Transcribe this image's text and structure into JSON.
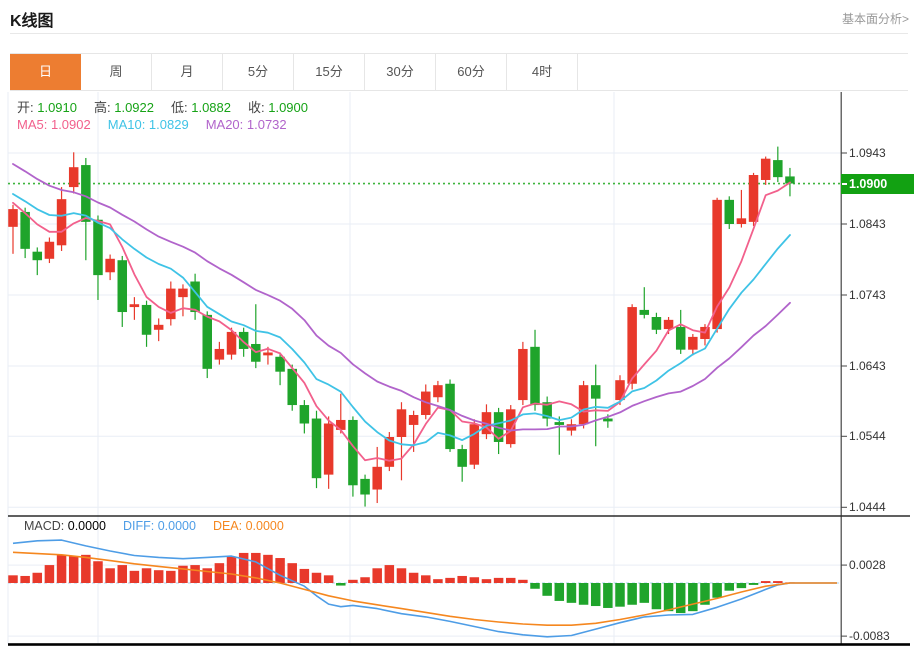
{
  "header": {
    "title": "K线图",
    "link_label": "基本面分析>"
  },
  "tabs": {
    "active_index": 0,
    "items": [
      "日",
      "周",
      "月",
      "5分",
      "15分",
      "30分",
      "60分",
      "4时"
    ]
  },
  "overlay": {
    "ohlc": [
      {
        "name": "open",
        "label": "开:",
        "value": "1.0910"
      },
      {
        "name": "high",
        "label": "高:",
        "value": "1.0922"
      },
      {
        "name": "low",
        "label": "低:",
        "value": "1.0882"
      },
      {
        "name": "close",
        "label": "收:",
        "value": "1.0900"
      }
    ],
    "ma": [
      {
        "name": "ma5",
        "label": "MA5:",
        "value": "1.0902"
      },
      {
        "name": "ma10",
        "label": "MA10:",
        "value": "1.0829"
      },
      {
        "name": "ma20",
        "label": "MA20:",
        "value": "1.0732"
      }
    ]
  },
  "price_axis": {
    "ticks": [
      "1.0943",
      "1.0843",
      "1.0743",
      "1.0643",
      "1.0544",
      "1.0444"
    ],
    "current_label": "1.0900"
  },
  "macd_header": [
    {
      "name": "macd",
      "label": "MACD:",
      "value": "0.0000"
    },
    {
      "name": "diff",
      "label": "DIFF:",
      "value": "0.0000"
    },
    {
      "name": "dea",
      "label": "DEA:",
      "value": "0.0000"
    }
  ],
  "macd_axis": {
    "ticks": [
      "0.0028",
      "-0.0083"
    ]
  },
  "colors": {
    "up": "#e8392b",
    "down": "#1fa42b",
    "ma5": "#f2608c",
    "ma10": "#3fc3e6",
    "ma20": "#b164cb",
    "diff": "#4e9de6",
    "dea": "#f5871f",
    "value_green": "#17a317",
    "badge_bg": "#12a112",
    "current_line": "#3db53d",
    "accent_tab": "#ed7d31",
    "grid": "#e9eef5",
    "axis": "#444",
    "zero_line": "#a9d3f2",
    "label_dark": "#444"
  },
  "chart_data": {
    "type": "candlestick",
    "title": "K线图",
    "period": "日",
    "grid": true,
    "price_ticks": [
      1.0943,
      1.0843,
      1.0743,
      1.0643,
      1.0544,
      1.0444
    ],
    "price_range": [
      1.0444,
      1.0943
    ],
    "current_price": 1.09,
    "last_ohlc": {
      "open": 1.091,
      "high": 1.0922,
      "low": 1.0882,
      "close": 1.09
    },
    "ma_values": {
      "ma5": 1.0902,
      "ma10": 1.0829,
      "ma20": 1.0732
    },
    "ma_periods": [
      5,
      10,
      20
    ],
    "ma_seed_closes": [
      1.102,
      1.1015,
      1.101,
      1.1005,
      1.0998,
      1.099,
      1.0958,
      1.0945,
      1.0935,
      1.0925,
      1.0918,
      1.091,
      1.0905,
      1.0898,
      1.089,
      1.0885,
      1.088,
      1.0872,
      1.087,
      1.0878
    ],
    "candles": [
      [
        1.0839,
        1.087,
        1.0801,
        1.0864
      ],
      [
        1.086,
        1.0866,
        1.0795,
        1.0808
      ],
      [
        1.0804,
        1.081,
        1.0771,
        1.0792
      ],
      [
        1.0794,
        1.0824,
        1.0788,
        1.0818
      ],
      [
        1.0813,
        1.0895,
        1.0805,
        1.0878
      ],
      [
        1.0895,
        1.0944,
        1.0886,
        1.0923
      ],
      [
        1.0926,
        1.0936,
        1.0792,
        1.0846
      ],
      [
        1.0849,
        1.0855,
        1.0736,
        1.0771
      ],
      [
        1.0775,
        1.08,
        1.0764,
        1.0794
      ],
      [
        1.0792,
        1.0798,
        1.0698,
        1.0719
      ],
      [
        1.0726,
        1.074,
        1.0708,
        1.073
      ],
      [
        1.0729,
        1.0735,
        1.067,
        1.0687
      ],
      [
        1.0694,
        1.071,
        1.0678,
        1.0701
      ],
      [
        1.0709,
        1.0762,
        1.07,
        1.0752
      ],
      [
        1.074,
        1.0758,
        1.0713,
        1.0752
      ],
      [
        1.0762,
        1.0773,
        1.0708,
        1.0719
      ],
      [
        1.0715,
        1.072,
        1.0626,
        1.0639
      ],
      [
        1.0652,
        1.0677,
        1.0645,
        1.0667
      ],
      [
        1.0659,
        1.0697,
        1.0652,
        1.0691
      ],
      [
        1.0691,
        1.0697,
        1.0656,
        1.0667
      ],
      [
        1.0674,
        1.073,
        1.064,
        1.0649
      ],
      [
        1.0658,
        1.067,
        1.0645,
        1.0662
      ],
      [
        1.0656,
        1.0662,
        1.0616,
        1.0635
      ],
      [
        1.0639,
        1.0645,
        1.058,
        1.0588
      ],
      [
        1.0588,
        1.0595,
        1.0548,
        1.0562
      ],
      [
        1.0569,
        1.058,
        1.0471,
        1.0485
      ],
      [
        1.049,
        1.0572,
        1.047,
        1.0562
      ],
      [
        1.0553,
        1.0604,
        1.0548,
        1.0567
      ],
      [
        1.0567,
        1.0572,
        1.0459,
        1.0475
      ],
      [
        1.0484,
        1.049,
        1.0445,
        1.0462
      ],
      [
        1.0469,
        1.0529,
        1.045,
        1.0501
      ],
      [
        1.0501,
        1.055,
        1.0495,
        1.0543
      ],
      [
        1.0543,
        1.0592,
        1.0482,
        1.0582
      ],
      [
        1.056,
        1.058,
        1.0522,
        1.0574
      ],
      [
        1.0574,
        1.0617,
        1.0568,
        1.0607
      ],
      [
        1.0599,
        1.0622,
        1.0592,
        1.0616
      ],
      [
        1.0618,
        1.0624,
        1.0522,
        1.0526
      ],
      [
        1.0526,
        1.0532,
        1.048,
        1.0501
      ],
      [
        1.0504,
        1.0568,
        1.0498,
        1.0561
      ],
      [
        1.0547,
        1.0589,
        1.054,
        1.0578
      ],
      [
        1.0578,
        1.0584,
        1.0519,
        1.0536
      ],
      [
        1.0533,
        1.0588,
        1.0528,
        1.0582
      ],
      [
        1.0595,
        1.0677,
        1.0588,
        1.0667
      ],
      [
        1.067,
        1.0694,
        1.058,
        1.0588
      ],
      [
        1.0592,
        1.06,
        1.0558,
        1.0569
      ],
      [
        1.0564,
        1.0572,
        1.0518,
        1.056
      ],
      [
        1.0552,
        1.0568,
        1.0545,
        1.0561
      ],
      [
        1.0561,
        1.0622,
        1.0555,
        1.0616
      ],
      [
        1.0616,
        1.0645,
        1.053,
        1.0597
      ],
      [
        1.0569,
        1.0575,
        1.0556,
        1.0565
      ],
      [
        1.0595,
        1.063,
        1.0588,
        1.0623
      ],
      [
        1.0618,
        1.073,
        1.061,
        1.0726
      ],
      [
        1.0722,
        1.0754,
        1.071,
        1.0715
      ],
      [
        1.0712,
        1.0718,
        1.0688,
        1.0694
      ],
      [
        1.0695,
        1.0712,
        1.0688,
        1.0708
      ],
      [
        1.0698,
        1.0722,
        1.066,
        1.0666
      ],
      [
        1.0666,
        1.0688,
        1.0658,
        1.0684
      ],
      [
        1.0681,
        1.0702,
        1.0672,
        1.0698
      ],
      [
        1.0695,
        1.088,
        1.069,
        1.0877
      ],
      [
        1.0877,
        1.0882,
        1.0836,
        1.0843
      ],
      [
        1.0843,
        1.0891,
        1.0838,
        1.0851
      ],
      [
        1.0846,
        1.0915,
        1.084,
        1.0912
      ],
      [
        1.0905,
        1.0938,
        1.0898,
        1.0935
      ],
      [
        1.0933,
        1.0952,
        1.0902,
        1.0909
      ],
      [
        1.091,
        1.0922,
        1.0882,
        1.09
      ]
    ],
    "macd": {
      "values": {
        "macd": 0.0,
        "diff": 0.0,
        "dea": 0.0
      },
      "ticks": [
        0.0028,
        -0.0083
      ],
      "range": [
        -0.0083,
        0.0028
      ],
      "histogram": [
        0.0012,
        0.0011,
        0.0016,
        0.0028,
        0.0044,
        0.0042,
        0.0044,
        0.0034,
        0.0023,
        0.0028,
        0.0019,
        0.0023,
        0.002,
        0.0019,
        0.0027,
        0.0028,
        0.0023,
        0.0031,
        0.0041,
        0.0047,
        0.0047,
        0.0044,
        0.0039,
        0.0031,
        0.0022,
        0.0016,
        0.0012,
        -0.0004,
        0.0005,
        0.0009,
        0.0023,
        0.0028,
        0.0023,
        0.0016,
        0.0012,
        0.0006,
        0.0008,
        0.0011,
        0.0009,
        0.0006,
        0.0008,
        0.0008,
        0.0005,
        -0.0009,
        -0.002,
        -0.0028,
        -0.0031,
        -0.0034,
        -0.0036,
        -0.0039,
        -0.0037,
        -0.0034,
        -0.0031,
        -0.0041,
        -0.0044,
        -0.0047,
        -0.0044,
        -0.0034,
        -0.0023,
        -0.0012,
        -0.0008,
        -0.0003,
        0.0003,
        0.0003,
        0.0001
      ],
      "diff_points": [
        [
          1,
          0.0062
        ],
        [
          3,
          0.0066
        ],
        [
          5,
          0.0067
        ],
        [
          7,
          0.0058
        ],
        [
          9,
          0.005
        ],
        [
          11,
          0.0043
        ],
        [
          13,
          0.004
        ],
        [
          15,
          0.0038
        ],
        [
          17,
          0.004
        ],
        [
          19,
          0.0042
        ],
        [
          21,
          0.0033
        ],
        [
          23,
          0.0012
        ],
        [
          25,
          -0.0005
        ],
        [
          26,
          -0.002
        ],
        [
          27,
          -0.0033
        ],
        [
          28,
          -0.0037
        ],
        [
          29,
          -0.0035
        ],
        [
          31,
          -0.004
        ],
        [
          33,
          -0.0048
        ],
        [
          35,
          -0.0053
        ],
        [
          37,
          -0.006
        ],
        [
          39,
          -0.0068
        ],
        [
          41,
          -0.0076
        ],
        [
          43,
          -0.0081
        ],
        [
          45,
          -0.0084
        ],
        [
          47,
          -0.0082
        ],
        [
          49,
          -0.0072
        ],
        [
          51,
          -0.0062
        ],
        [
          53,
          -0.0053
        ],
        [
          55,
          -0.005
        ],
        [
          57,
          -0.0049
        ],
        [
          59,
          -0.0038
        ],
        [
          61,
          -0.0025
        ],
        [
          63,
          -0.001
        ],
        [
          64,
          -0.0003
        ],
        [
          65,
          0.0
        ]
      ],
      "dea_points": [
        [
          1,
          0.0048
        ],
        [
          3,
          0.0046
        ],
        [
          5,
          0.0044
        ],
        [
          7,
          0.004
        ],
        [
          9,
          0.0035
        ],
        [
          11,
          0.003
        ],
        [
          13,
          0.0026
        ],
        [
          15,
          0.0022
        ],
        [
          17,
          0.0018
        ],
        [
          19,
          0.0014
        ],
        [
          21,
          0.0008
        ],
        [
          23,
          0.0
        ],
        [
          25,
          -0.001
        ],
        [
          27,
          -0.002
        ],
        [
          29,
          -0.0028
        ],
        [
          31,
          -0.0034
        ],
        [
          33,
          -0.004
        ],
        [
          35,
          -0.0046
        ],
        [
          37,
          -0.0052
        ],
        [
          39,
          -0.0057
        ],
        [
          41,
          -0.0061
        ],
        [
          43,
          -0.0064
        ],
        [
          45,
          -0.0066
        ],
        [
          47,
          -0.0066
        ],
        [
          49,
          -0.0063
        ],
        [
          51,
          -0.0057
        ],
        [
          53,
          -0.005
        ],
        [
          55,
          -0.0042
        ],
        [
          57,
          -0.0033
        ],
        [
          59,
          -0.0024
        ],
        [
          61,
          -0.0014
        ],
        [
          63,
          -0.0005
        ],
        [
          65,
          0.0
        ]
      ]
    }
  }
}
